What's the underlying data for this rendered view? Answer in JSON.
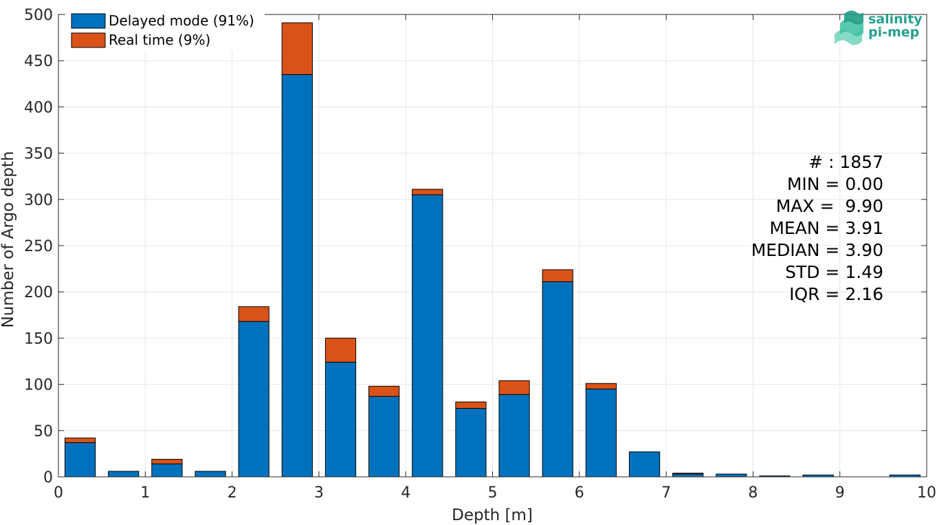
{
  "chart_data": {
    "type": "bar",
    "stacked": true,
    "xlabel": "Depth [m]",
    "ylabel": "Number of Argo depth",
    "xlim": [
      0,
      10
    ],
    "ylim": [
      0,
      500
    ],
    "xticks": [
      0,
      1,
      2,
      3,
      4,
      5,
      6,
      7,
      8,
      9,
      10
    ],
    "yticks": [
      0,
      50,
      100,
      150,
      200,
      250,
      300,
      350,
      400,
      450,
      500
    ],
    "grid": true,
    "legend_position": "top-left",
    "bin_width": 0.5,
    "bar_width": 0.35,
    "x": [
      0.25,
      0.75,
      1.25,
      1.75,
      2.25,
      2.75,
      3.25,
      3.75,
      4.25,
      4.75,
      5.25,
      5.75,
      6.25,
      6.75,
      7.25,
      7.75,
      8.25,
      8.75,
      9.25,
      9.75
    ],
    "series": [
      {
        "name": "Delayed mode (91%)",
        "color": "#0072BD",
        "values": [
          37,
          6,
          14,
          6,
          168,
          435,
          124,
          87,
          305,
          74,
          89,
          211,
          95,
          27,
          3,
          3,
          1,
          2,
          0,
          2
        ]
      },
      {
        "name": "Real time (9%)",
        "color": "#D95319",
        "values": [
          5,
          0,
          5,
          0,
          16,
          56,
          26,
          11,
          6,
          7,
          15,
          13,
          6,
          0,
          1,
          0,
          0,
          0,
          0,
          0
        ]
      }
    ],
    "stats": [
      "# : 1857",
      "MIN = 0.00",
      "MAX =  9.90",
      "MEAN = 3.91",
      "MEDIAN = 3.90",
      "STD = 1.49",
      "IQR = 2.16"
    ]
  },
  "logo": {
    "line1": "salinity",
    "line2": "pi-mep"
  }
}
